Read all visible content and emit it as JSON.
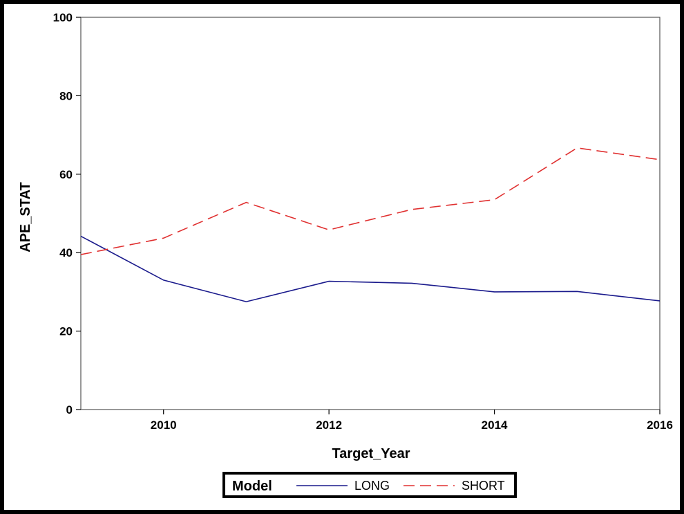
{
  "chart_data": {
    "type": "line",
    "title": "",
    "xlabel": "Target_Year",
    "ylabel": "APE_STAT",
    "xlim": [
      2009,
      2016
    ],
    "ylim": [
      0,
      100
    ],
    "x_ticks": [
      2010,
      2012,
      2014,
      2016
    ],
    "y_ticks": [
      0,
      20,
      40,
      60,
      80,
      100
    ],
    "grid": false,
    "legend": {
      "title": "Model",
      "placement": "bottom-center"
    },
    "x": [
      2009,
      2010,
      2011,
      2012,
      2013,
      2014,
      2015,
      2016
    ],
    "series": [
      {
        "name": "LONG",
        "color": "#1a1a8c",
        "dash": "solid",
        "values": [
          44.2,
          33.0,
          27.5,
          32.7,
          32.2,
          30.0,
          30.1,
          27.7
        ]
      },
      {
        "name": "SHORT",
        "color": "#e03030",
        "dash": "dashed",
        "values": [
          39.5,
          43.7,
          52.8,
          45.8,
          51.0,
          53.5,
          66.7,
          63.7
        ]
      }
    ]
  }
}
